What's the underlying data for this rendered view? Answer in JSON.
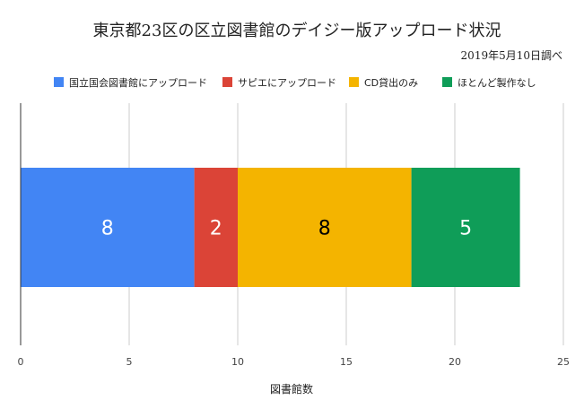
{
  "chart_data": {
    "type": "bar",
    "orientation": "horizontal",
    "stacked": true,
    "title": "東京都23区の区立図書館のデイジー版アップロード状況",
    "subtitle": "2019年5月10日調べ",
    "xlabel": "図書館数",
    "ylabel": "",
    "xlim": [
      0,
      25
    ],
    "x_ticks": [
      0,
      5,
      10,
      15,
      20,
      25
    ],
    "grid": true,
    "legend_position": "top",
    "categories": [
      ""
    ],
    "series": [
      {
        "name": "国立国会図書館にアップロード",
        "values": [
          8
        ],
        "color": "#4285F4",
        "label_color": "#ffffff"
      },
      {
        "name": "サピエにアップロード",
        "values": [
          2
        ],
        "color": "#DB4437",
        "label_color": "#ffffff"
      },
      {
        "name": "CD貸出のみ",
        "values": [
          8
        ],
        "color": "#F4B400",
        "label_color": "#000000"
      },
      {
        "name": "ほとんど製作なし",
        "values": [
          5
        ],
        "color": "#0F9D58",
        "label_color": "#ffffff"
      }
    ]
  }
}
